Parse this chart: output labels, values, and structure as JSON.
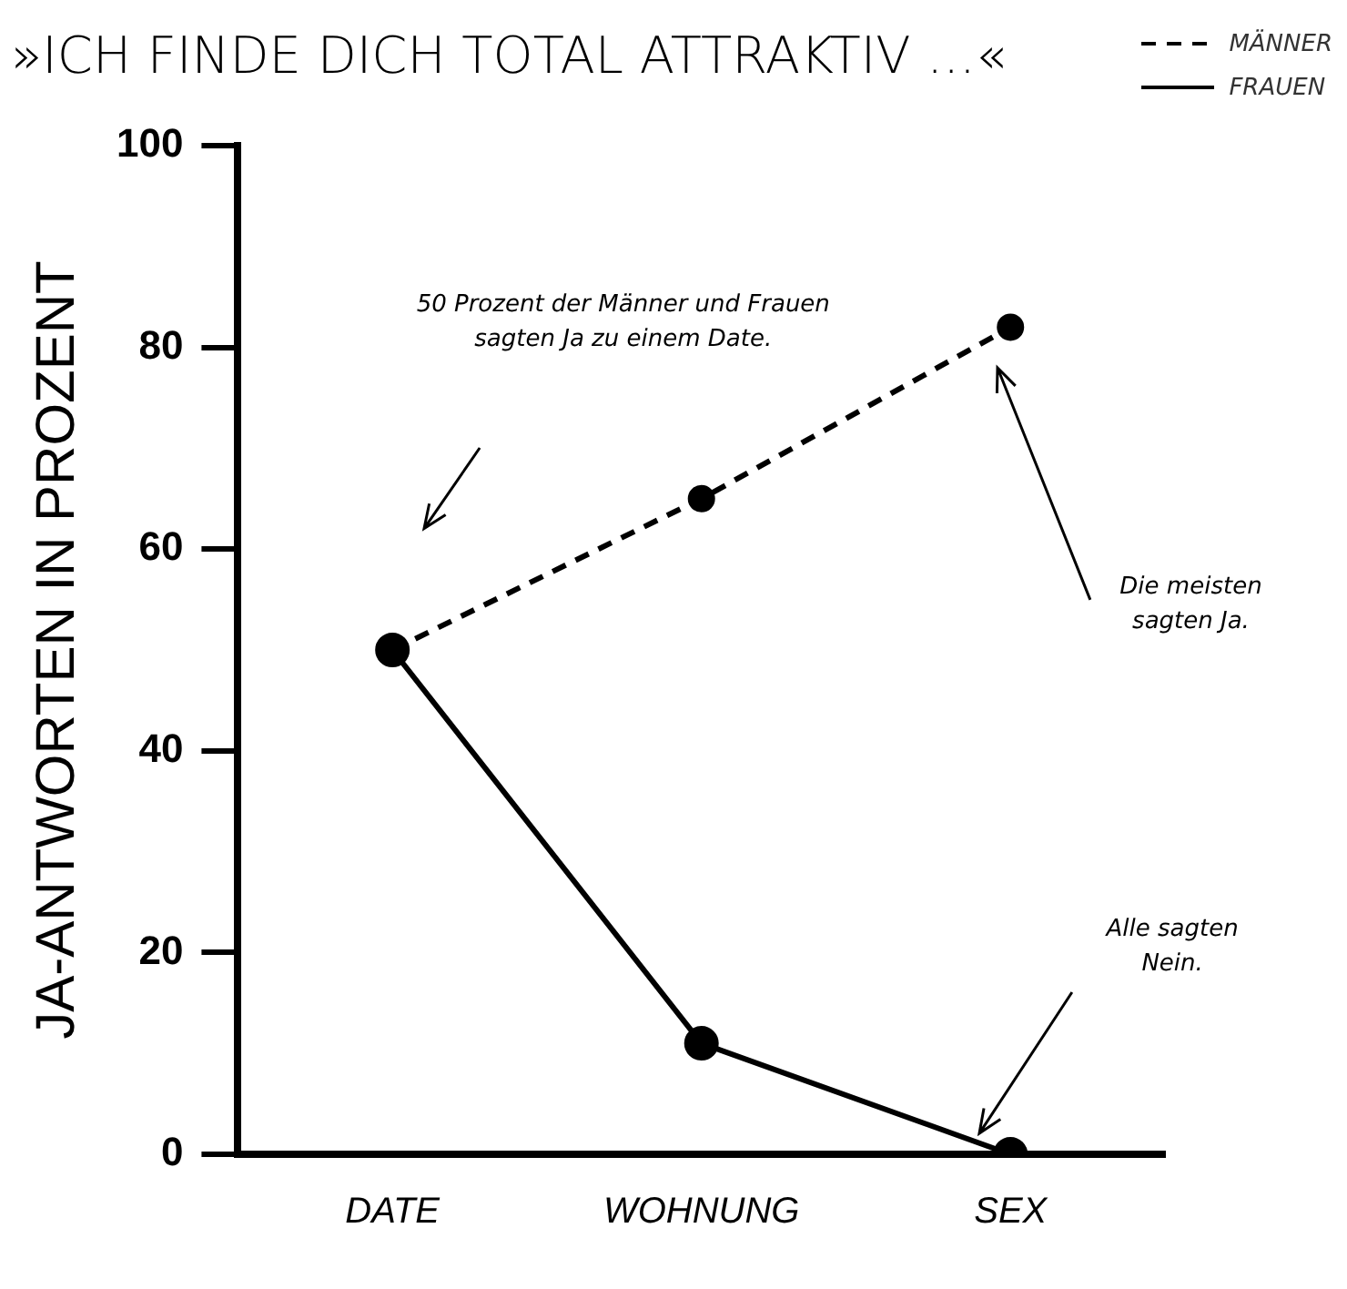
{
  "chart_data": {
    "type": "line",
    "title": "»ICH FINDE DICH TOTAL ATTRAKTIV ...«",
    "ylabel": "JA-ANTWORTEN IN PROZENT",
    "categories": [
      "DATE",
      "WOHNUNG",
      "SEX"
    ],
    "series": [
      {
        "name": "MÄNNER",
        "color": "#000000",
        "values": [
          50,
          65,
          82
        ],
        "line_style": "dashed"
      },
      {
        "name": "FRAUEN",
        "color": "#000000",
        "values": [
          50,
          11,
          0
        ],
        "line_style": "solid"
      }
    ],
    "ylim": [
      0,
      100
    ],
    "yticks": [
      0,
      20,
      40,
      60,
      80,
      100
    ],
    "grid": false,
    "legend": "top right",
    "marker": "circle",
    "annotations": [
      "50 Prozent der Männer und Frauen sagten Ja zu einem Date.",
      "Die meisten sagten Ja.",
      "Alle sagten Nein."
    ]
  }
}
